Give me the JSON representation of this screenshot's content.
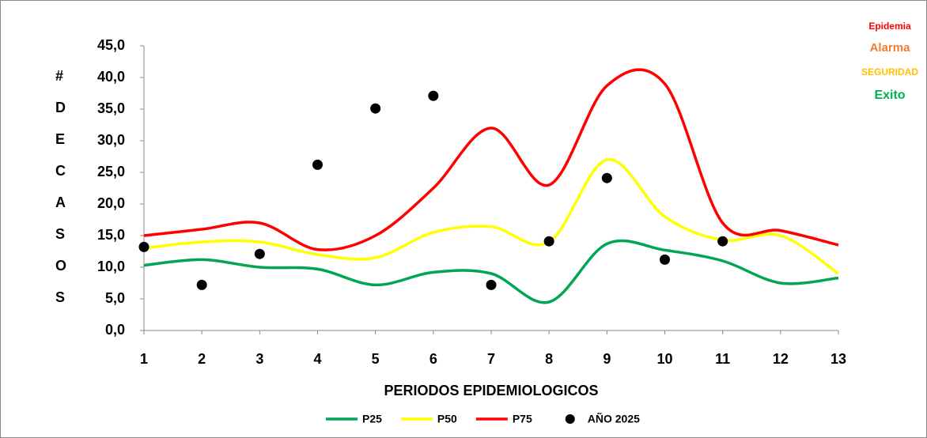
{
  "chart_data": {
    "type": "line",
    "x_label": "PERIODOS EPIDEMIOLOGICOS",
    "y_label": "# DE CASOS",
    "x": [
      1,
      2,
      3,
      4,
      5,
      6,
      7,
      8,
      9,
      10,
      11,
      12,
      13
    ],
    "xlim": [
      1,
      13
    ],
    "xticks": [
      1,
      2,
      3,
      4,
      5,
      6,
      7,
      8,
      9,
      10,
      11,
      12,
      13
    ],
    "ylim": [
      0,
      45
    ],
    "yticks": [
      {
        "value": 0,
        "label": "0,0"
      },
      {
        "value": 5,
        "label": "5,0"
      },
      {
        "value": 10,
        "label": "10,0"
      },
      {
        "value": 15,
        "label": "15,0"
      },
      {
        "value": 20,
        "label": "20,0"
      },
      {
        "value": 25,
        "label": "25,0"
      },
      {
        "value": 30,
        "label": "30,0"
      },
      {
        "value": 35,
        "label": "35,0"
      },
      {
        "value": 40,
        "label": "40,0"
      },
      {
        "value": 45,
        "label": "45,0"
      }
    ],
    "grid": false,
    "series": [
      {
        "name": "P25",
        "color": "#00a651",
        "style": "line",
        "values": [
          10.3,
          11.2,
          10.0,
          9.7,
          7.2,
          9.2,
          9.0,
          4.5,
          13.7,
          12.7,
          11.0,
          7.5,
          8.3
        ]
      },
      {
        "name": "P50",
        "color": "#ffff00",
        "style": "line",
        "values": [
          13.0,
          14.0,
          14.0,
          12.0,
          11.5,
          15.5,
          16.4,
          14.0,
          27.0,
          18.0,
          14.3,
          15.0,
          9.0
        ]
      },
      {
        "name": "P75",
        "color": "#ff0000",
        "style": "line",
        "values": [
          15.0,
          16.0,
          17.0,
          12.8,
          15.0,
          22.5,
          32.0,
          23.0,
          38.7,
          39.0,
          17.0,
          15.8,
          13.5
        ]
      },
      {
        "name": "AÑO 2025",
        "color": "#000000",
        "style": "marker",
        "values": [
          13.2,
          7.2,
          12.1,
          26.2,
          35.1,
          37.1,
          7.2,
          14.1,
          24.1,
          11.2,
          14.1,
          null,
          null
        ]
      }
    ],
    "annotations": [
      {
        "text": "Epidemia",
        "color": "#ff0000"
      },
      {
        "text": "Alarma",
        "color": "#ed7d31"
      },
      {
        "text": "SEGURIDAD",
        "color": "#ffc000"
      },
      {
        "text": "Exito",
        "color": "#00b050"
      }
    ]
  }
}
